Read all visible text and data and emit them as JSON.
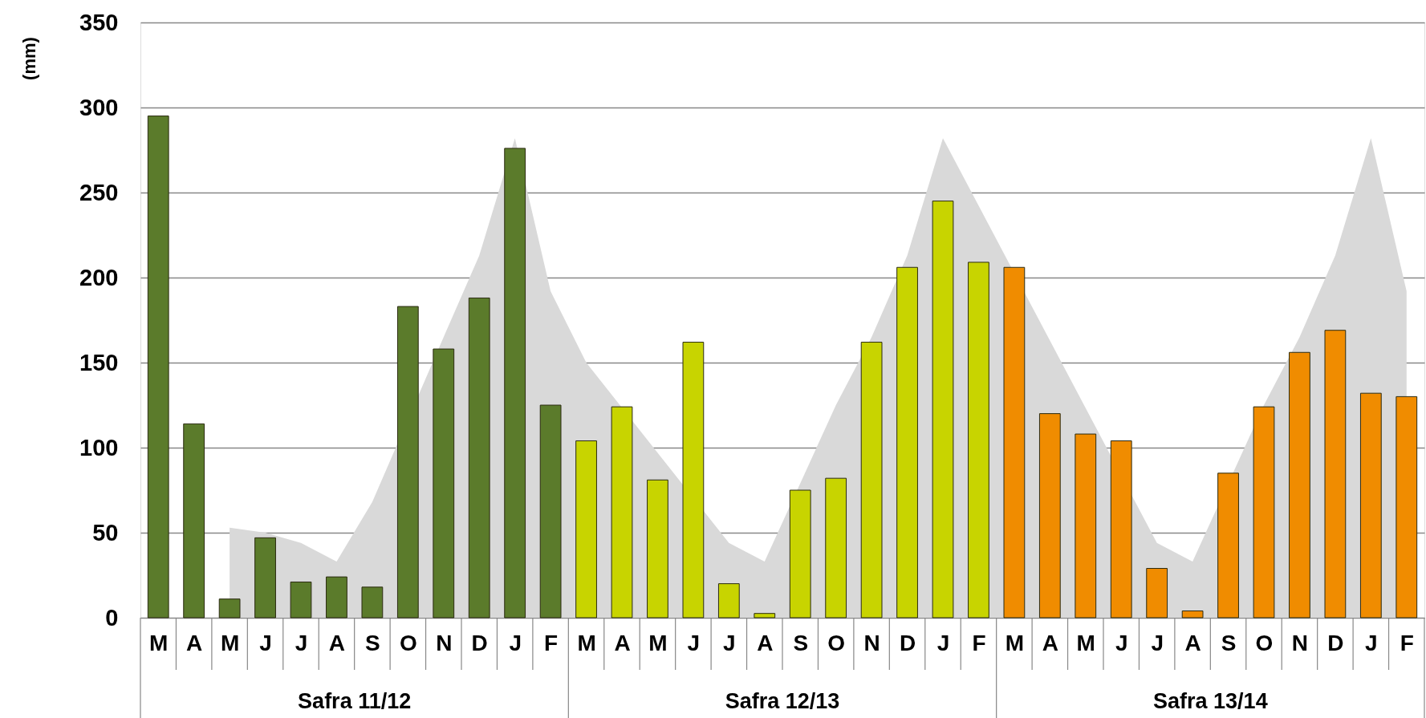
{
  "chart_data": {
    "type": "bar",
    "ylabel": "(mm)",
    "ylim": [
      0,
      350
    ],
    "yticks": [
      0,
      50,
      100,
      150,
      200,
      250,
      300,
      350
    ],
    "grid": "y",
    "categories": [
      "M",
      "A",
      "M",
      "J",
      "J",
      "A",
      "S",
      "O",
      "N",
      "D",
      "J",
      "F",
      "M",
      "A",
      "M",
      "J",
      "J",
      "A",
      "S",
      "O",
      "N",
      "D",
      "J",
      "F",
      "M",
      "A",
      "M",
      "J",
      "J",
      "A",
      "S",
      "O",
      "N",
      "D",
      "J",
      "F"
    ],
    "annotations": [
      "Safra 11/12",
      "Safra 12/13",
      "Safra 13/14"
    ],
    "series": [
      {
        "type": "area",
        "color": "#d9d9d9",
        "values": [
          null,
          null,
          53,
          50,
          44,
          33,
          68,
          null,
          165,
          213,
          282,
          192,
          150,
          null,
          null,
          null,
          44,
          33,
          null,
          125,
          165,
          213,
          282,
          null,
          null,
          null,
          null,
          null,
          44,
          33,
          null,
          125,
          165,
          213,
          282,
          192
        ]
      },
      {
        "color": "#5b7b2b",
        "values": [
          295,
          114,
          11,
          47,
          21,
          24,
          18,
          183,
          158,
          188,
          276,
          125,
          null,
          null,
          null,
          null,
          null,
          null,
          null,
          null,
          null,
          null,
          null,
          null,
          null,
          null,
          null,
          null,
          null,
          null,
          null,
          null,
          null,
          null,
          null,
          null
        ]
      },
      {
        "color": "#c8d400",
        "values": [
          null,
          null,
          null,
          null,
          null,
          null,
          null,
          null,
          null,
          null,
          null,
          null,
          104,
          124,
          81,
          162,
          20,
          2.5,
          75,
          82,
          162,
          206,
          245,
          209,
          null,
          null,
          null,
          null,
          null,
          null,
          null,
          null,
          null,
          null,
          null,
          null
        ]
      },
      {
        "color": "#f08c00",
        "values": [
          null,
          null,
          null,
          null,
          null,
          null,
          null,
          null,
          null,
          null,
          null,
          null,
          null,
          null,
          null,
          null,
          null,
          null,
          null,
          null,
          null,
          null,
          null,
          null,
          206,
          120,
          108,
          104,
          29,
          4,
          85,
          124,
          156,
          169,
          132,
          130
        ]
      }
    ]
  }
}
